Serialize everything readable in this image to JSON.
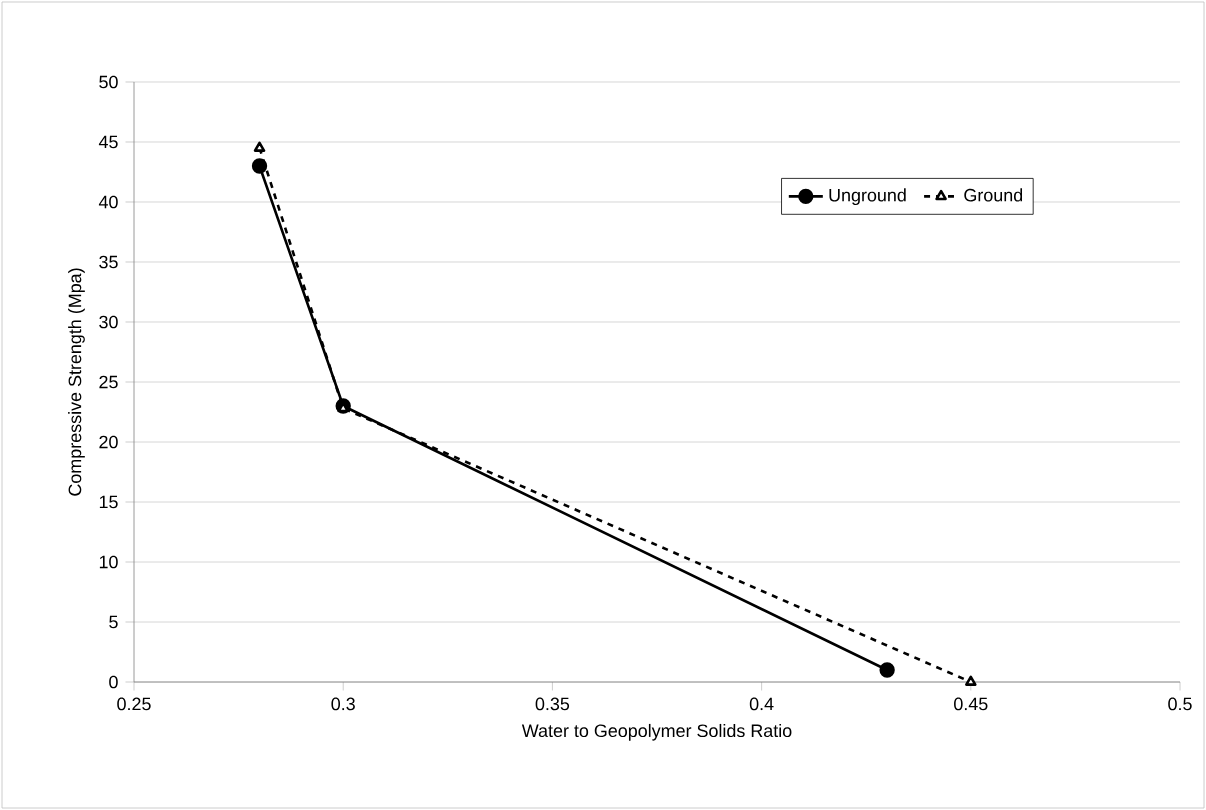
{
  "chart_data": {
    "type": "line",
    "xlabel": "Water to Geopolymer Solids Ratio",
    "ylabel": "Compressive Strength (Mpa)",
    "xlim": [
      0.25,
      0.5
    ],
    "xticks": [
      0.25,
      0.3,
      0.35,
      0.4,
      0.45,
      0.5
    ],
    "ylim": [
      0,
      50
    ],
    "yticks": [
      0,
      5,
      10,
      15,
      20,
      25,
      30,
      35,
      40,
      45,
      50
    ],
    "grid": "y",
    "legend": "top right",
    "series": [
      {
        "name": "Unground",
        "color": "#000000",
        "x": [
          0.28,
          0.3,
          0.43
        ],
        "values": [
          43,
          23,
          1
        ],
        "marker": "circle",
        "line_style": "solid"
      },
      {
        "name": "Ground",
        "color": "#000000",
        "x": [
          0.28,
          0.3,
          0.45
        ],
        "values": [
          44.5,
          22.8,
          0
        ],
        "marker": "triangle",
        "line_style": "dashed"
      }
    ]
  }
}
